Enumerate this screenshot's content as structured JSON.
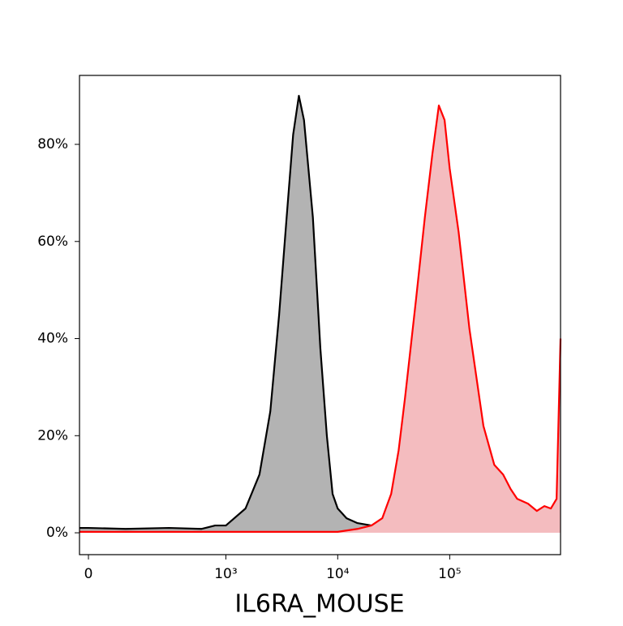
{
  "chart_data": {
    "type": "area",
    "xlabel": "IL6RA_MOUSE",
    "xscale": "asinh",
    "xlim": [
      -22,
      976000
    ],
    "xticks": [
      0,
      {
        "value": 1000,
        "label": "10³"
      },
      {
        "value": 10000,
        "label": "10⁴"
      },
      {
        "value": 100000,
        "label": "10⁵"
      }
    ],
    "ylim": [
      -4.5,
      94.2
    ],
    "yticks": [
      {
        "value": 0,
        "label": "0%"
      },
      {
        "value": 20,
        "label": "20%"
      },
      {
        "value": 40,
        "label": "40%"
      },
      {
        "value": 60,
        "label": "60%"
      },
      {
        "value": 80,
        "label": "80%"
      }
    ],
    "series": [
      {
        "color": "#000000",
        "fill": "#b3b3b3",
        "x": [
          -22,
          0,
          100,
          300,
          600,
          800,
          1000,
          1500,
          2000,
          2500,
          3000,
          3500,
          4000,
          4500,
          5000,
          6000,
          7000,
          8000,
          9000,
          10000,
          12000,
          15000,
          20000,
          30000,
          50000,
          100000,
          200000,
          400000,
          600000,
          650000
        ],
        "values": [
          1.0,
          1.0,
          0.8,
          1.0,
          0.8,
          1.5,
          1.5,
          5,
          12,
          25,
          45,
          65,
          82,
          90,
          85,
          65,
          38,
          20,
          8,
          5,
          3,
          2,
          1.5,
          1.0,
          1.0,
          0.5,
          0.3,
          0.3,
          0.3,
          0.6
        ]
      },
      {
        "color": "#ff0000",
        "fill": "#f4bcbf",
        "x": [
          -22,
          0,
          1000,
          10000,
          15000,
          20000,
          25000,
          30000,
          35000,
          40000,
          50000,
          60000,
          70000,
          80000,
          90000,
          100000,
          120000,
          150000,
          200000,
          250000,
          300000,
          350000,
          400000,
          500000,
          600000,
          700000,
          800000,
          900000,
          976000
        ],
        "values": [
          0.2,
          0.2,
          0.2,
          0.2,
          0.8,
          1.5,
          3,
          8,
          17,
          28,
          48,
          65,
          78,
          88,
          85,
          75,
          62,
          42,
          22,
          14,
          12,
          9,
          7,
          6,
          4.5,
          5.5,
          5,
          7,
          40
        ]
      }
    ]
  }
}
